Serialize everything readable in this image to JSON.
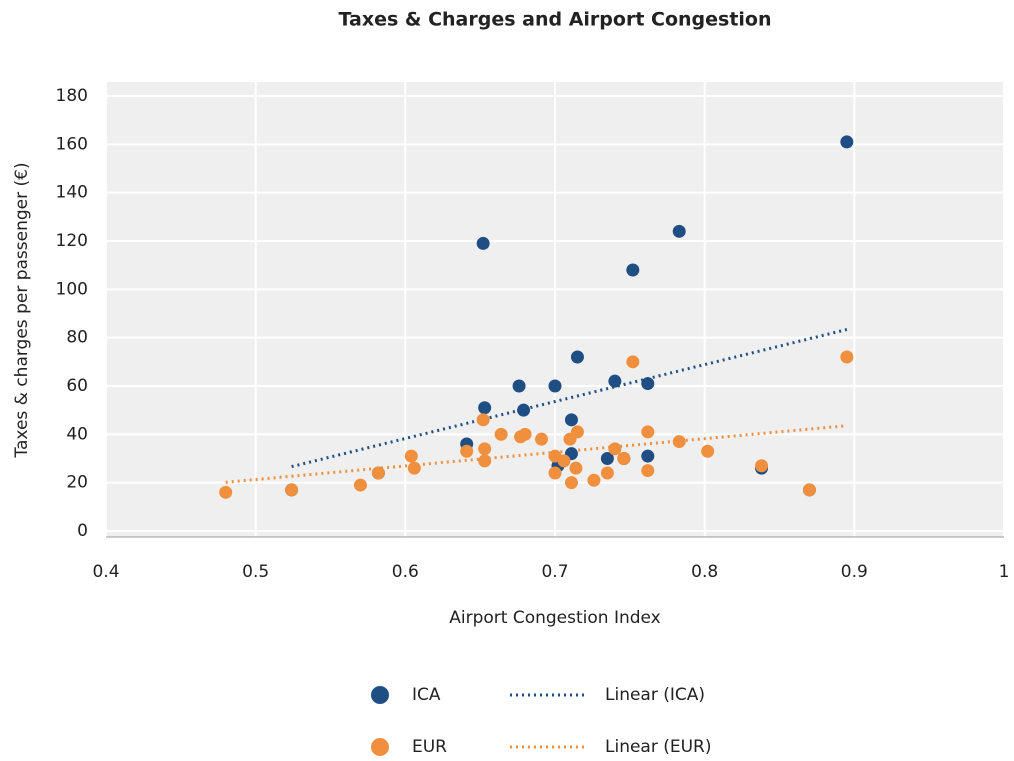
{
  "chart_data": {
    "type": "scatter",
    "title": "Taxes & Charges and Airport Congestion",
    "x_label": "Airport Congestion Index",
    "y_label": "Taxes & charges per passenger (€)",
    "xlim": [
      0.4,
      1
    ],
    "xticks": [
      0.4,
      0.5,
      0.6,
      0.7,
      0.8,
      0.9,
      1
    ],
    "ylim": [
      0,
      180
    ],
    "yticks": [
      0,
      20,
      40,
      60,
      80,
      100,
      120,
      140,
      160,
      180
    ],
    "grid": true,
    "series": [
      {
        "name": "ICA",
        "color": "#1f4e85",
        "trendline": "Linear (ICA)",
        "x": [
          0.895,
          0.783,
          0.652,
          0.752,
          0.715,
          0.676,
          0.7,
          0.74,
          0.762,
          0.653,
          0.679,
          0.711,
          0.641,
          0.711,
          0.735,
          0.746,
          0.762,
          0.702,
          0.838,
          0.87,
          0.524,
          0.582
        ],
        "values": [
          161,
          124,
          119,
          108,
          72,
          60,
          60,
          62,
          61,
          51,
          50,
          46,
          36,
          32,
          30,
          30,
          31,
          27,
          26,
          17,
          17,
          24
        ]
      },
      {
        "name": "EUR",
        "color": "#f0903e",
        "trendline": "Linear (EUR)",
        "x": [
          0.895,
          0.752,
          0.652,
          0.664,
          0.677,
          0.68,
          0.691,
          0.715,
          0.762,
          0.71,
          0.783,
          0.641,
          0.653,
          0.74,
          0.802,
          0.604,
          0.7,
          0.706,
          0.746,
          0.653,
          0.606,
          0.714,
          0.7,
          0.735,
          0.762,
          0.838,
          0.711,
          0.726,
          0.582,
          0.57,
          0.524,
          0.87,
          0.48
        ],
        "values": [
          72,
          70,
          46,
          40,
          39,
          40,
          38,
          41,
          41,
          38,
          37,
          33,
          34,
          34,
          33,
          31,
          31,
          29,
          30,
          29,
          26,
          26,
          24,
          24,
          25,
          27,
          20,
          21,
          24,
          19,
          17,
          17,
          16
        ]
      }
    ]
  }
}
